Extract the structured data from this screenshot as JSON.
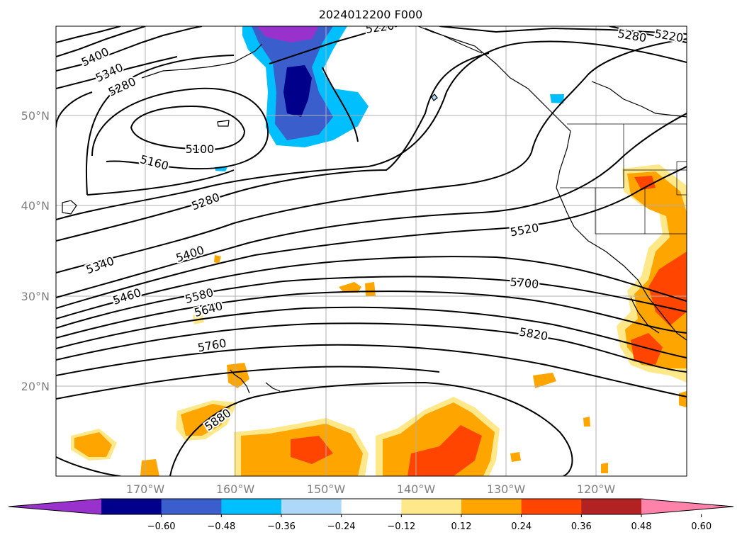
{
  "title": "2024012200 F000",
  "map": {
    "lat_labels": [
      "50°N",
      "40°N",
      "30°N",
      "20°N"
    ],
    "lon_labels": [
      "170°W",
      "160°W",
      "150°W",
      "140°W",
      "130°W",
      "120°W"
    ]
  },
  "contours": {
    "labels": [
      "5220",
      "5280",
      "5220",
      "5400",
      "5340",
      "5280",
      "5100",
      "5160",
      "5280",
      "5340",
      "5400",
      "5460",
      "5580",
      "5640",
      "5760",
      "5520",
      "5700",
      "5820",
      "5880"
    ]
  },
  "colorbar": {
    "ticks": [
      "−0.60",
      "−0.48",
      "−0.36",
      "−0.24",
      "−0.12",
      "0.12",
      "0.24",
      "0.36",
      "0.48",
      "0.60"
    ],
    "colors": [
      "#9932cc",
      "#00008b",
      "#3a5fcd",
      "#00bfff",
      "#add8f8",
      "#ffffff",
      "#ffe88a",
      "#ffa500",
      "#ff4500",
      "#b22222",
      "#ff82ab"
    ]
  },
  "colors": {
    "contour": "#000000",
    "grid": "#b0b0b0",
    "label_gray": "#808080"
  }
}
